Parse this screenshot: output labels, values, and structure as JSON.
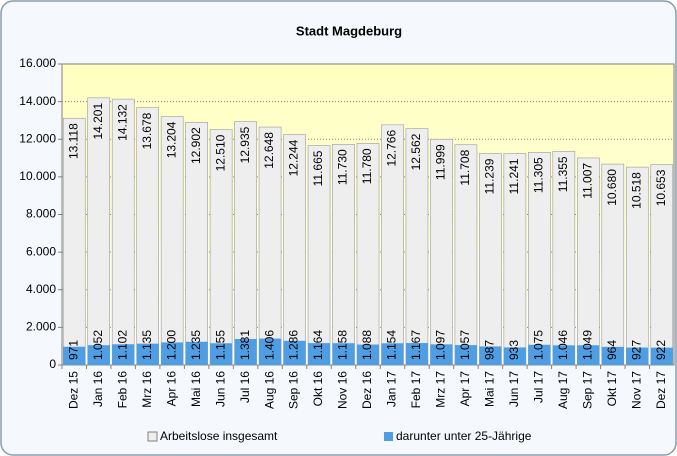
{
  "chart_data": {
    "type": "bar",
    "title": "Stadt Magdeburg",
    "categories": [
      "Dez 15",
      "Jan 16",
      "Feb 16",
      "Mrz 16",
      "Apr 16",
      "Mai 16",
      "Jun 16",
      "Jul 16",
      "Aug 16",
      "Sep 16",
      "Okt 16",
      "Nov 16",
      "Dez 16",
      "Jan 17",
      "Feb 17",
      "Mrz 17",
      "Apr 17",
      "Mai 17",
      "Jun 17",
      "Jul 17",
      "Aug 17",
      "Sep 17",
      "Okt 17",
      "Nov 17",
      "Dez 17"
    ],
    "series": [
      {
        "name": "Arbeitslose insgesamt",
        "color": "#eeeeee",
        "values": [
          13118,
          14201,
          14132,
          13678,
          13204,
          12902,
          12510,
          12935,
          12648,
          12244,
          11665,
          11730,
          11780,
          12766,
          12562,
          11999,
          11708,
          11239,
          11241,
          11305,
          11355,
          11007,
          10680,
          10518,
          10653
        ],
        "value_labels": [
          "13.118",
          "14.201",
          "14.132",
          "13.678",
          "13.204",
          "12.902",
          "12.510",
          "12.935",
          "12.648",
          "12.244",
          "11.665",
          "11.730",
          "11.780",
          "12.766",
          "12.562",
          "11.999",
          "11.708",
          "11.239",
          "11.241",
          "11.305",
          "11.355",
          "11.007",
          "10.680",
          "10.518",
          "10.653"
        ]
      },
      {
        "name": "darunter unter 25-Jährige",
        "color": "#4f9de3",
        "values": [
          971,
          1052,
          1102,
          1135,
          1200,
          1235,
          1155,
          1381,
          1406,
          1286,
          1164,
          1158,
          1088,
          1154,
          1167,
          1097,
          1057,
          987,
          933,
          1075,
          1046,
          1049,
          964,
          927,
          922
        ],
        "value_labels": [
          "971",
          "1.052",
          "1.102",
          "1.135",
          "1.200",
          "1.235",
          "1.155",
          "1.381",
          "1.406",
          "1.286",
          "1.164",
          "1.158",
          "1.088",
          "1.154",
          "1.167",
          "1.097",
          "1.057",
          "987",
          "933",
          "1.075",
          "1.046",
          "1.049",
          "964",
          "927",
          "922"
        ]
      }
    ],
    "ylim": [
      0,
      16000
    ],
    "yticks": [
      0,
      {
        "value": 2000,
        "label": "2.000"
      },
      {
        "value": 4000,
        "label": "4.000"
      },
      {
        "value": 6000,
        "label": "6.000"
      },
      {
        "value": 8000,
        "label": "8.000"
      },
      {
        "value": 10000,
        "label": "10.000"
      },
      {
        "value": 12000,
        "label": "12.000"
      },
      {
        "value": 14000,
        "label": "14.000"
      },
      {
        "value": 16000,
        "label": "16.000"
      }
    ],
    "grid": true
  }
}
